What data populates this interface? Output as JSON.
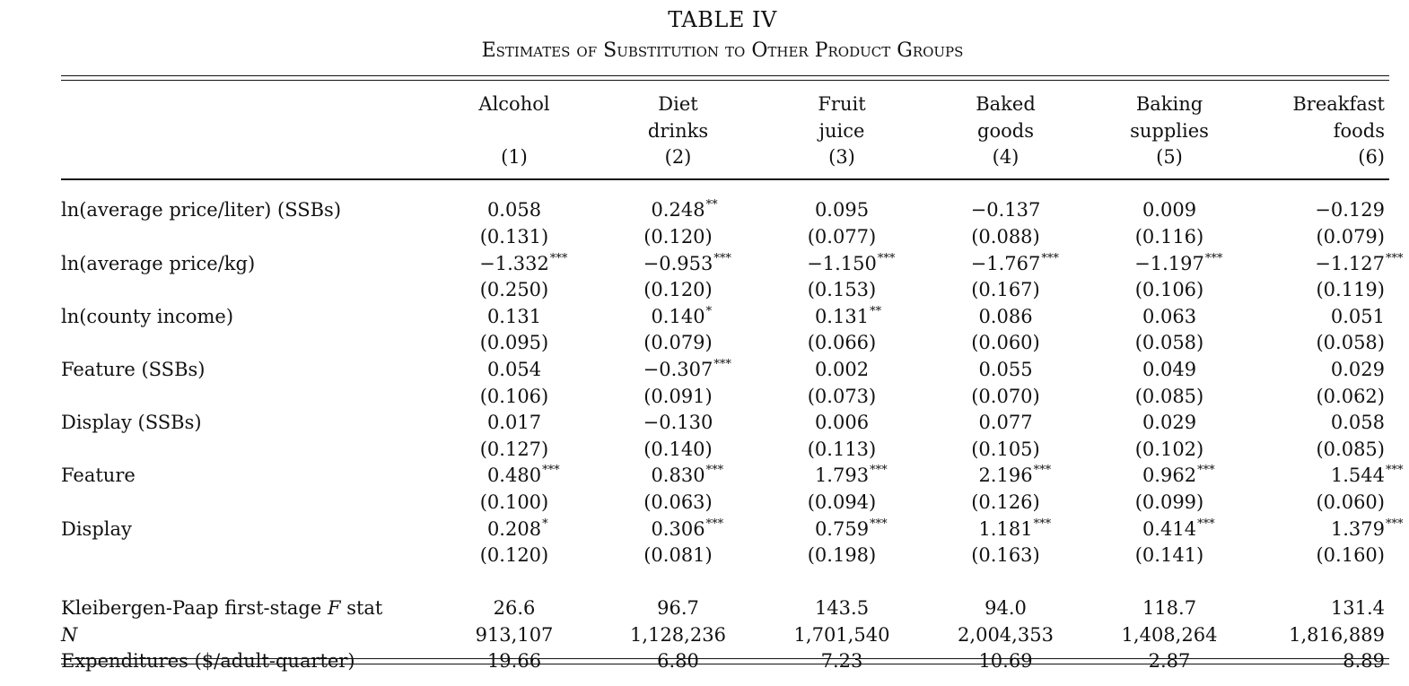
{
  "table": {
    "title": "TABLE IV",
    "subtitle": "Estimates of Substitution to Other Product Groups",
    "columns": [
      {
        "line1": "Alcohol",
        "line2": "",
        "number": "(1)"
      },
      {
        "line1": "Diet",
        "line2": "drinks",
        "number": "(2)"
      },
      {
        "line1": "Fruit",
        "line2": "juice",
        "number": "(3)"
      },
      {
        "line1": "Baked",
        "line2": "goods",
        "number": "(4)"
      },
      {
        "line1": "Baking",
        "line2": "supplies",
        "number": "(5)"
      },
      {
        "line1": "Breakfast",
        "line2": "foods",
        "number": "(6)"
      }
    ],
    "rows": [
      {
        "label": "ln(average price/liter) (SSBs)",
        "coefs": [
          {
            "v": "0.058",
            "s": ""
          },
          {
            "v": "0.248",
            "s": "**"
          },
          {
            "v": "0.095",
            "s": ""
          },
          {
            "v": "−0.137",
            "s": ""
          },
          {
            "v": "0.009",
            "s": ""
          },
          {
            "v": "−0.129",
            "s": ""
          }
        ],
        "ses": [
          "(0.131)",
          "(0.120)",
          "(0.077)",
          "(0.088)",
          "(0.116)",
          "(0.079)"
        ]
      },
      {
        "label": "ln(average price/kg)",
        "coefs": [
          {
            "v": "−1.332",
            "s": "***"
          },
          {
            "v": "−0.953",
            "s": "***"
          },
          {
            "v": "−1.150",
            "s": "***"
          },
          {
            "v": "−1.767",
            "s": "***"
          },
          {
            "v": "−1.197",
            "s": "***"
          },
          {
            "v": "−1.127",
            "s": "***"
          }
        ],
        "ses": [
          "(0.250)",
          "(0.120)",
          "(0.153)",
          "(0.167)",
          "(0.106)",
          "(0.119)"
        ]
      },
      {
        "label": "ln(county income)",
        "coefs": [
          {
            "v": "0.131",
            "s": ""
          },
          {
            "v": "0.140",
            "s": "*"
          },
          {
            "v": "0.131",
            "s": "**"
          },
          {
            "v": "0.086",
            "s": ""
          },
          {
            "v": "0.063",
            "s": ""
          },
          {
            "v": "0.051",
            "s": ""
          }
        ],
        "ses": [
          "(0.095)",
          "(0.079)",
          "(0.066)",
          "(0.060)",
          "(0.058)",
          "(0.058)"
        ]
      },
      {
        "label": "Feature (SSBs)",
        "coefs": [
          {
            "v": "0.054",
            "s": ""
          },
          {
            "v": "−0.307",
            "s": "***"
          },
          {
            "v": "0.002",
            "s": ""
          },
          {
            "v": "0.055",
            "s": ""
          },
          {
            "v": "0.049",
            "s": ""
          },
          {
            "v": "0.029",
            "s": ""
          }
        ],
        "ses": [
          "(0.106)",
          "(0.091)",
          "(0.073)",
          "(0.070)",
          "(0.085)",
          "(0.062)"
        ]
      },
      {
        "label": "Display (SSBs)",
        "coefs": [
          {
            "v": "0.017",
            "s": ""
          },
          {
            "v": "−0.130",
            "s": ""
          },
          {
            "v": "0.006",
            "s": ""
          },
          {
            "v": "0.077",
            "s": ""
          },
          {
            "v": "0.029",
            "s": ""
          },
          {
            "v": "0.058",
            "s": ""
          }
        ],
        "ses": [
          "(0.127)",
          "(0.140)",
          "(0.113)",
          "(0.105)",
          "(0.102)",
          "(0.085)"
        ]
      },
      {
        "label": "Feature",
        "coefs": [
          {
            "v": "0.480",
            "s": "***"
          },
          {
            "v": "0.830",
            "s": "***"
          },
          {
            "v": "1.793",
            "s": "***"
          },
          {
            "v": "2.196",
            "s": "***"
          },
          {
            "v": "0.962",
            "s": "***"
          },
          {
            "v": "1.544",
            "s": "***"
          }
        ],
        "ses": [
          "(0.100)",
          "(0.063)",
          "(0.094)",
          "(0.126)",
          "(0.099)",
          "(0.060)"
        ]
      },
      {
        "label": "Display",
        "coefs": [
          {
            "v": "0.208",
            "s": "*"
          },
          {
            "v": "0.306",
            "s": "***"
          },
          {
            "v": "0.759",
            "s": "***"
          },
          {
            "v": "1.181",
            "s": "***"
          },
          {
            "v": "0.414",
            "s": "***"
          },
          {
            "v": "1.379",
            "s": "***"
          }
        ],
        "ses": [
          "(0.120)",
          "(0.081)",
          "(0.198)",
          "(0.163)",
          "(0.141)",
          "(0.160)"
        ]
      }
    ],
    "stats": [
      {
        "label_pre": "Kleibergen-Paap first-stage ",
        "label_ital": "F",
        "label_post": " stat",
        "values": [
          "26.6",
          "96.7",
          "143.5",
          "94.0",
          "118.7",
          "131.4"
        ]
      },
      {
        "label_pre": "",
        "label_ital": "N",
        "label_post": "",
        "values": [
          "913,107",
          "1,128,236",
          "1,701,540",
          "2,004,353",
          "1,408,264",
          "1,816,889"
        ]
      },
      {
        "label_pre": "Expenditures ($/adult-quarter)",
        "label_ital": "",
        "label_post": "",
        "values": [
          "19.66",
          "6.80",
          "7.23",
          "10.69",
          "2.87",
          "8.89"
        ]
      }
    ]
  }
}
